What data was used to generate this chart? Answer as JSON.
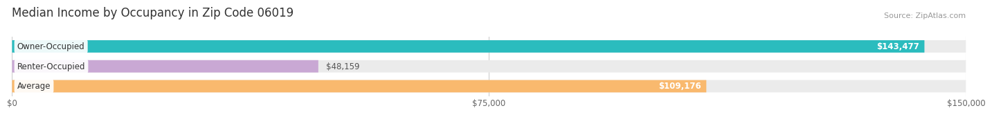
{
  "title": "Median Income by Occupancy in Zip Code 06019",
  "source": "Source: ZipAtlas.com",
  "categories": [
    "Owner-Occupied",
    "Renter-Occupied",
    "Average"
  ],
  "values": [
    143477,
    48159,
    109176
  ],
  "bar_colors": [
    "#2bbcbe",
    "#c9a8d4",
    "#f9b96e"
  ],
  "value_labels": [
    "$143,477",
    "$48,159",
    "$109,176"
  ],
  "xlim": [
    0,
    150000
  ],
  "xticks": [
    0,
    75000,
    150000
  ],
  "xtick_labels": [
    "$0",
    "$75,000",
    "$150,000"
  ],
  "title_fontsize": 12,
  "source_fontsize": 8,
  "label_fontsize": 8.5,
  "tick_fontsize": 8.5,
  "bg_color": "#ffffff",
  "bar_height": 0.62,
  "bar_bg_color": "#ebebeb"
}
